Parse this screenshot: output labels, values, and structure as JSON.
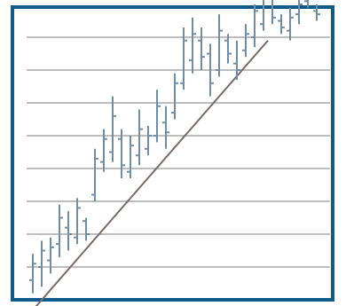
{
  "chart_data": {
    "type": "ohlc",
    "title": "",
    "xlabel": "",
    "ylabel": "",
    "grid": true,
    "legend": "none",
    "ylim": [
      0,
      9
    ],
    "horizontal_gridlines": [
      1,
      2,
      3,
      4,
      5,
      6,
      7,
      8
    ],
    "bars": [
      {
        "x": 1,
        "high": 1.4,
        "low": 0.2,
        "open": 0.6,
        "close": 1.1
      },
      {
        "x": 2,
        "high": 1.8,
        "low": 0.4,
        "open": 1.0,
        "close": 1.5
      },
      {
        "x": 3,
        "high": 1.9,
        "low": 0.8,
        "open": 1.2,
        "close": 1.6
      },
      {
        "x": 4,
        "high": 2.9,
        "low": 1.3,
        "open": 1.7,
        "close": 2.5
      },
      {
        "x": 5,
        "high": 2.7,
        "low": 1.5,
        "open": 2.2,
        "close": 2.0
      },
      {
        "x": 6,
        "high": 3.1,
        "low": 1.7,
        "open": 1.9,
        "close": 2.8
      },
      {
        "x": 7,
        "high": 2.5,
        "low": 1.8,
        "open": 2.4,
        "close": 2.0
      },
      {
        "x": 8,
        "high": 4.6,
        "low": 3.0,
        "open": 3.2,
        "close": 4.3
      },
      {
        "x": 9,
        "high": 5.2,
        "low": 3.9,
        "open": 4.2,
        "close": 4.9
      },
      {
        "x": 10,
        "high": 6.2,
        "low": 4.2,
        "open": 4.5,
        "close": 5.6
      },
      {
        "x": 11,
        "high": 5.2,
        "low": 3.7,
        "open": 4.9,
        "close": 4.1
      },
      {
        "x": 12,
        "high": 5.0,
        "low": 3.7,
        "open": 3.9,
        "close": 4.7
      },
      {
        "x": 13,
        "high": 5.8,
        "low": 4.1,
        "open": 4.4,
        "close": 5.2
      },
      {
        "x": 14,
        "high": 5.3,
        "low": 4.4,
        "open": 4.6,
        "close": 5.0
      },
      {
        "x": 15,
        "high": 6.4,
        "low": 4.8,
        "open": 5.0,
        "close": 5.9
      },
      {
        "x": 16,
        "high": 5.9,
        "low": 4.6,
        "open": 5.4,
        "close": 5.1
      },
      {
        "x": 17,
        "high": 6.9,
        "low": 5.5,
        "open": 5.7,
        "close": 6.6
      },
      {
        "x": 18,
        "high": 8.3,
        "low": 6.4,
        "open": 6.6,
        "close": 7.9
      },
      {
        "x": 19,
        "high": 8.6,
        "low": 6.9,
        "open": 7.3,
        "close": 8.1
      },
      {
        "x": 20,
        "high": 8.3,
        "low": 7.0,
        "open": 7.9,
        "close": 7.4
      },
      {
        "x": 21,
        "high": 7.8,
        "low": 6.2,
        "open": 7.5,
        "close": 6.6
      },
      {
        "x": 22,
        "high": 8.7,
        "low": 6.8,
        "open": 7.0,
        "close": 8.2
      },
      {
        "x": 23,
        "high": 8.1,
        "low": 7.2,
        "open": 7.9,
        "close": 7.5
      },
      {
        "x": 24,
        "high": 7.9,
        "low": 6.7,
        "open": 7.2,
        "close": 7.0
      },
      {
        "x": 25,
        "high": 8.4,
        "low": 7.4,
        "open": 7.6,
        "close": 8.1
      },
      {
        "x": 26,
        "high": 9.0,
        "low": 7.7,
        "open": 8.0,
        "close": 8.8
      },
      {
        "x": 27,
        "high": 9.7,
        "low": 8.2,
        "open": 8.4,
        "close": 9.2
      },
      {
        "x": 28,
        "high": 9.6,
        "low": 8.4,
        "open": 9.3,
        "close": 8.6
      },
      {
        "x": 29,
        "high": 8.7,
        "low": 8.1,
        "open": 8.5,
        "close": 8.3
      },
      {
        "x": 30,
        "high": 8.9,
        "low": 7.9,
        "open": 8.2,
        "close": 8.6
      },
      {
        "x": 31,
        "high": 9.3,
        "low": 8.4,
        "open": 8.7,
        "close": 9.0
      },
      {
        "x": 32,
        "high": 9.8,
        "low": 8.9,
        "open": 9.1,
        "close": 9.4
      },
      {
        "x": 33,
        "high": 9.0,
        "low": 8.5,
        "open": 8.8,
        "close": 8.7
      }
    ],
    "trendline": {
      "from": {
        "x": 0.4,
        "y": -0.5
      },
      "to": {
        "x": 27.5,
        "y": 7.9
      }
    },
    "colors": {
      "frame": "#0e5a8a",
      "gridline": "#bdbdbd",
      "bars": "#6f8ea6",
      "trendline": "#7a6a66",
      "background": "#ffffff"
    }
  }
}
